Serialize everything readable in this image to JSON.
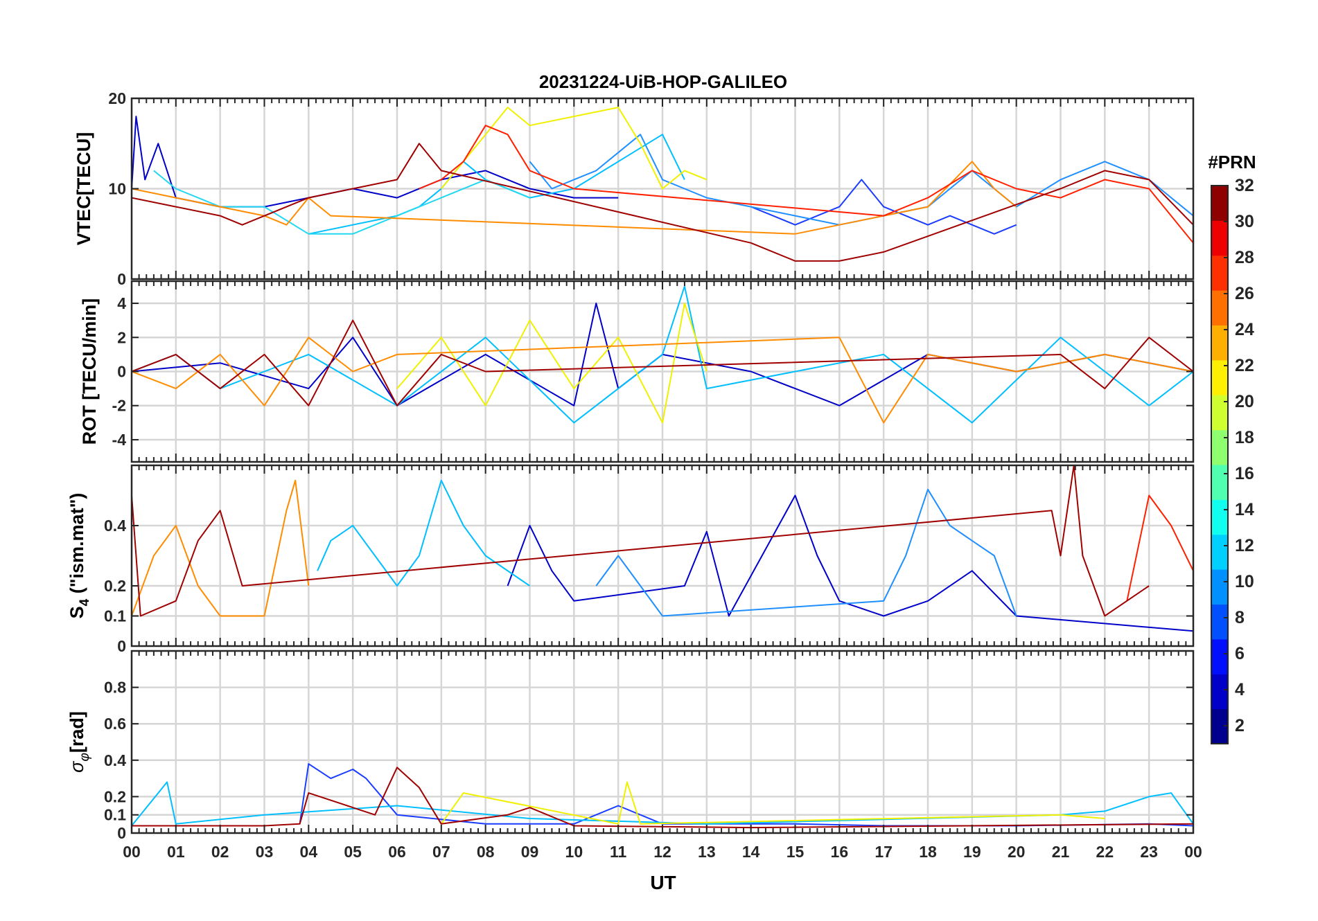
{
  "figure": {
    "title": "20231224-UiB-HOP-GALILEO",
    "xlabel": "UT"
  },
  "chart_data": [
    {
      "type": "line",
      "panel": "vtec",
      "ylabel": "VTEC[TECU]",
      "xlim": [
        0,
        24
      ],
      "ylim": [
        0,
        20
      ],
      "yticks": [
        0,
        10,
        20
      ],
      "series": [
        {
          "prn": 2,
          "color": "#0000c8",
          "x": [
            0,
            0.1,
            0.3,
            0.6,
            1,
            2,
            3,
            4,
            5,
            6,
            7,
            8,
            9,
            10,
            11
          ],
          "y": [
            10,
            18,
            11,
            15,
            9,
            8,
            8,
            9,
            10,
            9,
            11,
            12,
            10,
            9,
            9
          ]
        },
        {
          "prn": 5,
          "color": "#1a3cff",
          "x": [
            14,
            14.5,
            15,
            15.5,
            16,
            16.5,
            17,
            17.5,
            18,
            18.5,
            19,
            19.5,
            20
          ],
          "y": [
            8,
            7,
            6,
            7,
            8,
            11,
            8,
            7,
            6,
            7,
            6,
            5,
            6
          ]
        },
        {
          "prn": 8,
          "color": "#1f8fff",
          "x": [
            9,
            9.5,
            10,
            10.5,
            11,
            11.5,
            12,
            12.5,
            13,
            14,
            15,
            16,
            17,
            18,
            19,
            20,
            21,
            22,
            23,
            24
          ],
          "y": [
            13,
            10,
            11,
            12,
            14,
            16,
            11,
            10,
            9,
            8,
            7,
            6,
            7,
            8,
            12,
            8,
            11,
            13,
            11,
            7
          ]
        },
        {
          "prn": 11,
          "color": "#00bfff",
          "x": [
            4,
            5,
            6,
            6.5,
            7,
            7.5,
            8,
            9,
            10,
            11,
            12,
            12.5
          ],
          "y": [
            5,
            6,
            7,
            8,
            10,
            13,
            11,
            9,
            10,
            13,
            16,
            11
          ]
        },
        {
          "prn": 12,
          "color": "#22d8f0",
          "x": [
            0.5,
            1,
            2,
            3,
            4,
            5,
            6,
            7,
            8,
            9
          ],
          "y": [
            12,
            10,
            8,
            8,
            5,
            5,
            7,
            9,
            11,
            9
          ]
        },
        {
          "prn": 20,
          "color": "#f0f000",
          "x": [
            7,
            8,
            8.5,
            9,
            10,
            11,
            11.5,
            12,
            12.5,
            13
          ],
          "y": [
            10,
            16,
            19,
            17,
            18,
            19,
            15,
            10,
            12,
            11
          ]
        },
        {
          "prn": 23,
          "color": "#ff8c00",
          "x": [
            0,
            1,
            2,
            3,
            3.5,
            4,
            4.5,
            15,
            16,
            17,
            18,
            19,
            19.5,
            20
          ],
          "y": [
            10,
            9,
            8,
            7,
            6,
            9,
            7,
            5,
            6,
            7,
            8,
            13,
            10,
            8
          ]
        },
        {
          "prn": 27,
          "color": "#ff2000",
          "x": [
            6.5,
            7,
            7.5,
            8,
            8.5,
            9,
            10,
            17,
            18,
            19,
            20,
            21,
            22,
            23,
            24
          ],
          "y": [
            10,
            11,
            13,
            17,
            16,
            12,
            10,
            7,
            9,
            12,
            10,
            9,
            11,
            10,
            4
          ]
        },
        {
          "prn": 31,
          "color": "#a00000",
          "x": [
            0,
            1,
            2,
            2.5,
            4,
            5,
            6,
            6.5,
            7,
            14,
            15,
            16,
            17,
            21,
            22,
            23,
            24
          ],
          "y": [
            9,
            8,
            7,
            6,
            9,
            10,
            11,
            15,
            12,
            4,
            2,
            2,
            3,
            10,
            12,
            11,
            6
          ]
        }
      ]
    },
    {
      "type": "line",
      "panel": "rot",
      "ylabel": "ROT [TECU/min]",
      "xlim": [
        0,
        24
      ],
      "ylim": [
        -5.3,
        5.3
      ],
      "yticks": [
        -4,
        -2,
        0,
        2,
        4
      ],
      "series": [
        {
          "prn": 2,
          "color": "#0000c8",
          "x": [
            0,
            2,
            4,
            5,
            6,
            8,
            10,
            10.5,
            11,
            12,
            14,
            16,
            18,
            20,
            22,
            24
          ],
          "y": [
            0,
            0.5,
            -1,
            2,
            -2,
            1,
            -2,
            4,
            -1,
            1,
            0,
            -2,
            1,
            0,
            1,
            0
          ]
        },
        {
          "prn": 11,
          "color": "#00bfff",
          "x": [
            0,
            1,
            2,
            3,
            4,
            6,
            8,
            10,
            12,
            12.5,
            13,
            15,
            17,
            19,
            21,
            23,
            24
          ],
          "y": [
            0,
            1,
            -1,
            0,
            1,
            -2,
            2,
            -3,
            1,
            5,
            -1,
            0,
            1,
            -3,
            2,
            -2,
            0
          ]
        },
        {
          "prn": 20,
          "color": "#f0f000",
          "x": [
            6,
            7,
            8,
            9,
            10,
            11,
            12,
            12.5,
            13
          ],
          "y": [
            -1,
            2,
            -2,
            3,
            -1,
            2,
            -3,
            4,
            0
          ]
        },
        {
          "prn": 23,
          "color": "#ff8c00",
          "x": [
            0,
            1,
            2,
            3,
            4,
            5,
            6,
            16,
            17,
            18,
            20,
            22,
            24
          ],
          "y": [
            0,
            -1,
            1,
            -2,
            2,
            0,
            1,
            2,
            -3,
            1,
            0,
            1,
            0
          ]
        },
        {
          "prn": 31,
          "color": "#a00000",
          "x": [
            0,
            1,
            2,
            3,
            4,
            5,
            6,
            7,
            8,
            21,
            22,
            23,
            24
          ],
          "y": [
            0,
            1,
            -1,
            1,
            -2,
            3,
            -2,
            1,
            0,
            1,
            -1,
            2,
            0
          ]
        }
      ]
    },
    {
      "type": "line",
      "panel": "s4",
      "ylabel": "S4 (\"ism.mat\")",
      "xlim": [
        0,
        24
      ],
      "ylim": [
        0,
        0.6
      ],
      "yticks": [
        0,
        0.1,
        0.2,
        0.4
      ],
      "series": [
        {
          "prn": 2,
          "color": "#0000c8",
          "x": [
            8.5,
            9,
            9.5,
            10,
            12.5,
            13,
            13.5,
            15,
            15.5,
            16,
            17,
            18,
            19,
            20,
            24
          ],
          "y": [
            0.2,
            0.4,
            0.25,
            0.15,
            0.2,
            0.38,
            0.1,
            0.5,
            0.3,
            0.15,
            0.1,
            0.15,
            0.25,
            0.1,
            0.05
          ]
        },
        {
          "prn": 8,
          "color": "#1f8fff",
          "x": [
            10.5,
            11,
            11.5,
            12,
            17,
            17.5,
            18,
            18.5,
            19,
            19.5,
            20
          ],
          "y": [
            0.2,
            0.3,
            0.2,
            0.1,
            0.15,
            0.3,
            0.52,
            0.4,
            0.35,
            0.3,
            0.1
          ]
        },
        {
          "prn": 11,
          "color": "#00bfff",
          "x": [
            4.2,
            4.5,
            5,
            5.5,
            6,
            6.5,
            7,
            7.5,
            8,
            9
          ],
          "y": [
            0.25,
            0.35,
            0.4,
            0.3,
            0.2,
            0.3,
            0.55,
            0.4,
            0.3,
            0.2
          ]
        },
        {
          "prn": 23,
          "color": "#ff8c00",
          "x": [
            0,
            0.5,
            1,
            1.5,
            2,
            3,
            3.5,
            3.7,
            4
          ],
          "y": [
            0.1,
            0.3,
            0.4,
            0.2,
            0.1,
            0.1,
            0.45,
            0.55,
            0.2
          ]
        },
        {
          "prn": 27,
          "color": "#ff2000",
          "x": [
            22.5,
            23,
            23.5,
            24
          ],
          "y": [
            0.15,
            0.5,
            0.4,
            0.25
          ]
        },
        {
          "prn": 31,
          "color": "#a00000",
          "x": [
            0,
            0.2,
            1,
            1.5,
            2,
            2.5,
            20.8,
            21,
            21.3,
            21.5,
            22,
            23
          ],
          "y": [
            0.5,
            0.1,
            0.15,
            0.35,
            0.45,
            0.2,
            0.45,
            0.3,
            0.6,
            0.3,
            0.1,
            0.2
          ]
        }
      ]
    },
    {
      "type": "line",
      "panel": "sigma_phi",
      "ylabel": "σφ[rad]",
      "xlim": [
        0,
        24
      ],
      "ylim": [
        0,
        1
      ],
      "yticks": [
        0,
        0.1,
        0.2,
        0.4,
        0.6,
        0.8
      ],
      "series": [
        {
          "prn": 5,
          "color": "#1a3cff",
          "x": [
            3.8,
            4,
            4.5,
            5,
            5.3,
            6,
            8,
            10,
            11,
            12,
            15,
            17,
            20,
            23,
            24
          ],
          "y": [
            0.05,
            0.38,
            0.3,
            0.35,
            0.3,
            0.1,
            0.05,
            0.05,
            0.15,
            0.05,
            0.05,
            0.04,
            0.04,
            0.05,
            0.04
          ]
        },
        {
          "prn": 11,
          "color": "#00bfff",
          "x": [
            0,
            0.8,
            1,
            3,
            6,
            9,
            13,
            21,
            22,
            23,
            23.5,
            24
          ],
          "y": [
            0.04,
            0.28,
            0.05,
            0.1,
            0.15,
            0.08,
            0.05,
            0.1,
            0.12,
            0.2,
            0.22,
            0.05
          ]
        },
        {
          "prn": 20,
          "color": "#f0f000",
          "x": [
            7,
            7.5,
            11,
            11.2,
            11.5,
            21,
            22
          ],
          "y": [
            0.05,
            0.22,
            0.05,
            0.28,
            0.05,
            0.1,
            0.08
          ]
        },
        {
          "prn": 31,
          "color": "#a00000",
          "x": [
            0,
            3,
            3.8,
            4,
            5.5,
            6,
            6.5,
            7,
            8.5,
            9,
            10,
            14,
            24
          ],
          "y": [
            0.04,
            0.04,
            0.05,
            0.22,
            0.1,
            0.36,
            0.25,
            0.05,
            0.1,
            0.14,
            0.04,
            0.03,
            0.05
          ]
        }
      ]
    }
  ],
  "x_axis": {
    "tick_labels": [
      "00",
      "01",
      "02",
      "03",
      "04",
      "05",
      "06",
      "07",
      "08",
      "09",
      "10",
      "11",
      "12",
      "13",
      "14",
      "15",
      "16",
      "17",
      "18",
      "19",
      "20",
      "21",
      "22",
      "23",
      "00"
    ]
  },
  "colorbar": {
    "title": "#PRN",
    "min": 1,
    "max": 32,
    "tick_labels": [
      "2",
      "4",
      "6",
      "8",
      "10",
      "12",
      "14",
      "16",
      "18",
      "20",
      "22",
      "24",
      "26",
      "28",
      "30",
      "32"
    ],
    "tick_values": [
      2,
      4,
      6,
      8,
      10,
      12,
      14,
      16,
      18,
      20,
      22,
      24,
      26,
      28,
      30,
      32
    ],
    "colors": [
      "#00008f",
      "#0000c8",
      "#0010ff",
      "#0050ff",
      "#0090ff",
      "#00d0ff",
      "#10ffef",
      "#50ffaf",
      "#90ff6f",
      "#d0ff2f",
      "#ffef00",
      "#ffaf00",
      "#ff7000",
      "#ff3000",
      "#ef0000",
      "#8f0000"
    ]
  }
}
